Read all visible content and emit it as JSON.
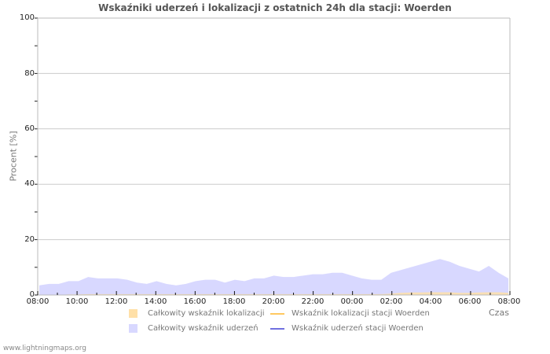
{
  "chart_data": {
    "type": "area",
    "title": "Wskaźniki uderzeń i lokalizacji z ostatnich 24h dla stacji: Woerden",
    "xlabel": "Czas",
    "ylabel": "Procent   [%]",
    "ylim": [
      0,
      100
    ],
    "yticks": [
      0,
      20,
      40,
      60,
      80,
      100
    ],
    "xticks": [
      "08:00",
      "10:00",
      "12:00",
      "14:00",
      "16:00",
      "18:00",
      "20:00",
      "22:00",
      "00:00",
      "02:00",
      "04:00",
      "06:00",
      "08:00"
    ],
    "grid": true,
    "legend_position": "bottom",
    "x": [
      "08:00",
      "08:30",
      "09:00",
      "09:30",
      "10:00",
      "10:30",
      "11:00",
      "11:30",
      "12:00",
      "12:30",
      "13:00",
      "13:30",
      "14:00",
      "14:30",
      "15:00",
      "15:30",
      "16:00",
      "16:30",
      "17:00",
      "17:30",
      "18:00",
      "18:30",
      "19:00",
      "19:30",
      "20:00",
      "20:30",
      "21:00",
      "21:30",
      "22:00",
      "22:30",
      "23:00",
      "23:30",
      "00:00",
      "00:30",
      "01:00",
      "01:30",
      "02:00",
      "02:30",
      "03:00",
      "03:30",
      "04:00",
      "04:30",
      "05:00",
      "05:30",
      "06:00",
      "06:30",
      "07:00",
      "07:30",
      "08:00"
    ],
    "series": [
      {
        "name": "Całkowity wskaźnik lokalizacji",
        "color": "#ffe0a8",
        "values": [
          0,
          0,
          0,
          0.2,
          0.2,
          0.3,
          0.3,
          0.3,
          0.3,
          0.3,
          0.3,
          0.3,
          0.3,
          0.3,
          0.3,
          0.3,
          0.3,
          0.3,
          0.3,
          0.3,
          0.3,
          0.3,
          0.3,
          0.3,
          0.3,
          0.3,
          0.3,
          0.3,
          0.3,
          0.3,
          0.3,
          0.3,
          0.3,
          0.3,
          0.3,
          0.3,
          0.5,
          0.8,
          0.9,
          0.9,
          1,
          1,
          1,
          0.8,
          0.8,
          0.9,
          1,
          1,
          0.8
        ]
      },
      {
        "name": "Całkowity wskaźnik uderzeń",
        "color": "#d8d8ff",
        "values": [
          3.5,
          4,
          4,
          5,
          5,
          6.5,
          6,
          6,
          6,
          5.5,
          4.5,
          4,
          5,
          4,
          3.5,
          4,
          5,
          5.5,
          5.5,
          4.5,
          5.5,
          5,
          6,
          6,
          7,
          6.5,
          6.5,
          7,
          7.5,
          7.5,
          8,
          8,
          7,
          6,
          5.5,
          5.5,
          8,
          9,
          10,
          11,
          12,
          13,
          12,
          10.5,
          9.5,
          8.5,
          10.5,
          8,
          6
        ]
      },
      {
        "name": "Wskaźnik lokalizacji stacji Woerden",
        "color": "#ffc860",
        "values": []
      },
      {
        "name": "Wskaźnik uderzeń stacji Woerden",
        "color": "#7070e0",
        "values": []
      }
    ]
  },
  "chart": {
    "title": "Wskaźniki uderzeń i lokalizacji z ostatnich 24h dla stacji: Woerden",
    "ylabel": "Procent   [%]",
    "xlabel": "Czas",
    "yticks": [
      "100",
      "80",
      "60",
      "40",
      "20",
      "0"
    ],
    "xticks": [
      "08:00",
      "10:00",
      "12:00",
      "14:00",
      "16:00",
      "18:00",
      "20:00",
      "22:00",
      "00:00",
      "02:00",
      "04:00",
      "06:00",
      "08:00"
    ]
  },
  "legend": {
    "total_location": "Całkowity wskaźnik lokalizacji",
    "total_strikes": "Całkowity wskaźnik uderzeń",
    "station_location": "Wskaźnik lokalizacji stacji Woerden",
    "station_strikes": "Wskaźnik uderzeń stacji Woerden"
  },
  "footer": "www.lightningmaps.org"
}
